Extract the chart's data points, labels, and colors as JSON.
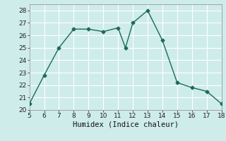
{
  "x_vals": [
    5,
    6,
    7,
    8,
    9,
    10,
    11,
    11.5,
    12,
    13,
    14,
    15,
    16,
    17,
    18
  ],
  "y_vals": [
    20.5,
    22.8,
    25.0,
    26.5,
    26.5,
    26.3,
    26.6,
    25.0,
    27.0,
    28.0,
    25.6,
    22.2,
    21.8,
    21.5,
    20.5
  ],
  "xlabel": "Humidex (Indice chaleur)",
  "ylim": [
    20,
    28.5
  ],
  "xlim": [
    5,
    18
  ],
  "yticks": [
    20,
    21,
    22,
    23,
    24,
    25,
    26,
    27,
    28
  ],
  "xticks": [
    5,
    6,
    7,
    8,
    9,
    10,
    11,
    12,
    13,
    14,
    15,
    16,
    17,
    18
  ],
  "line_color": "#1a6b5a",
  "bg_color": "#ceecea",
  "grid_color": "#ffffff",
  "marker": "D",
  "marker_size": 2.5,
  "linewidth": 1.0,
  "tick_labelsize": 6.5,
  "xlabel_fontsize": 7.5
}
